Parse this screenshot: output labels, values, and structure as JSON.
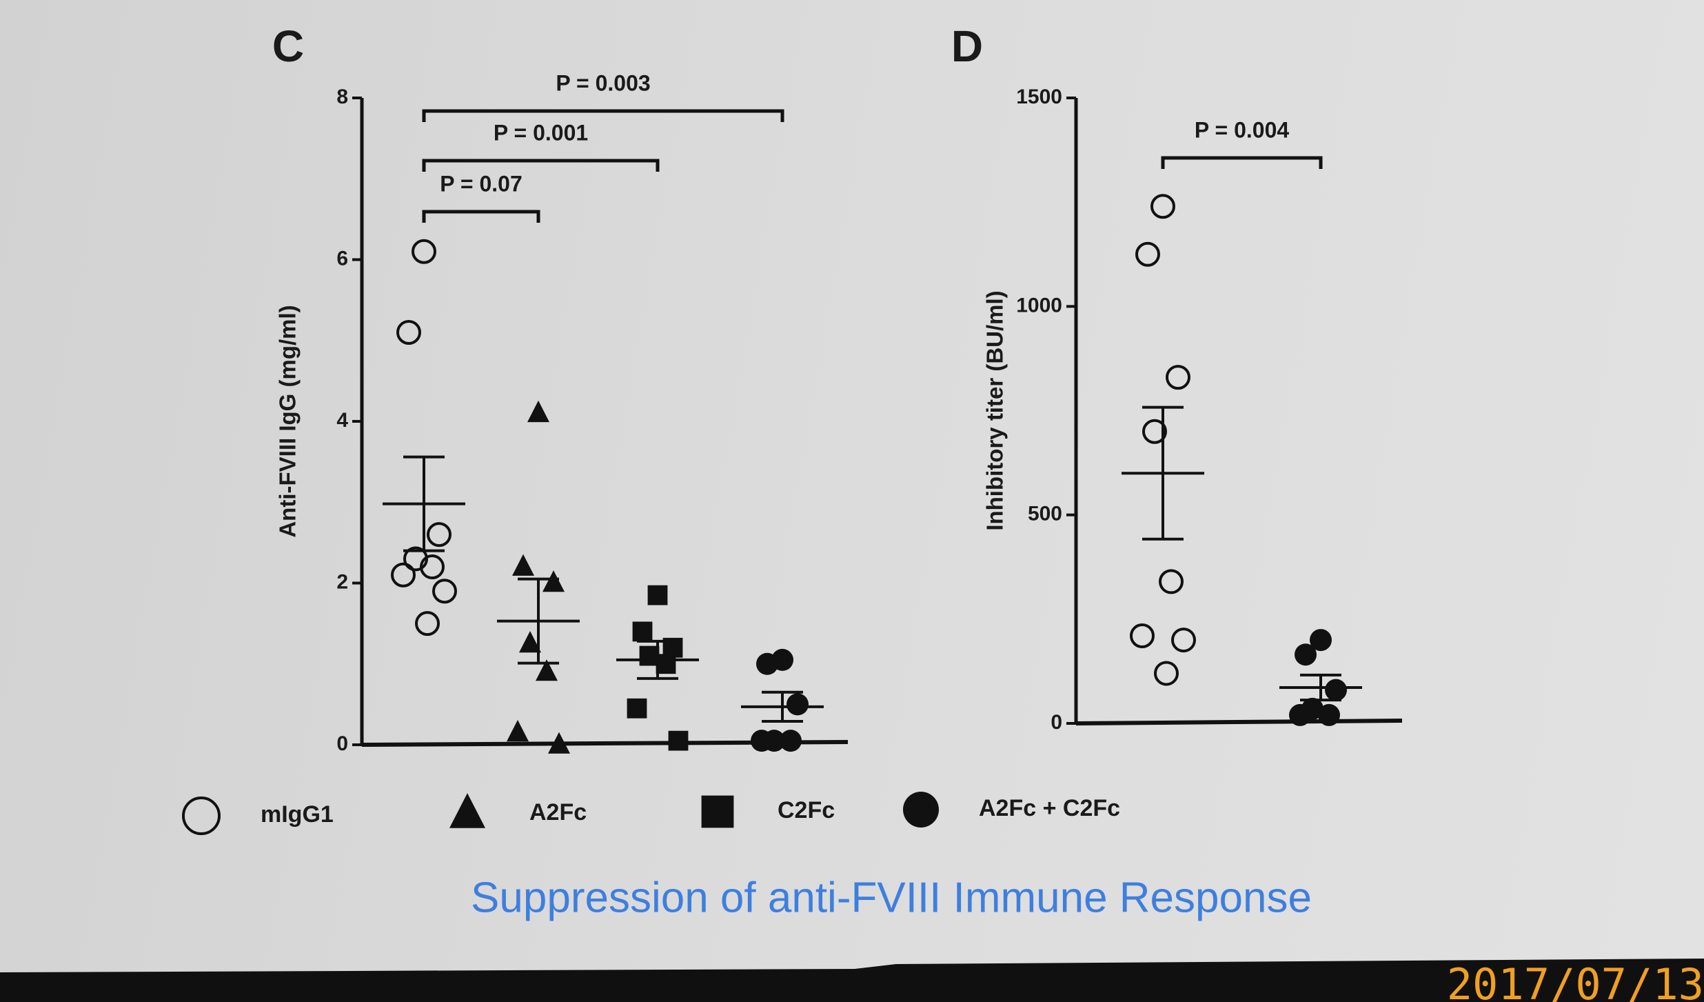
{
  "chart_data": [
    {
      "type": "dot",
      "panel": "C",
      "ylabel": "Anti-FVIII IgG (mg/ml)",
      "ylim": [
        0,
        8
      ],
      "yticks": [
        0,
        2,
        4,
        6,
        8
      ],
      "series": [
        {
          "name": "mIgG1",
          "marker": "circle-open",
          "color": "#111111",
          "values": [
            6.1,
            5.1,
            2.6,
            2.3,
            2.2,
            2.1,
            1.9,
            1.5
          ],
          "mean": 2.98,
          "error": 0.58
        },
        {
          "name": "A2Fc",
          "marker": "triangle",
          "color": "#111111",
          "values": [
            4.1,
            2.2,
            2.0,
            1.25,
            0.9,
            0.15,
            0.0
          ],
          "mean": 1.53,
          "error": 0.52
        },
        {
          "name": "C2Fc",
          "marker": "square",
          "color": "#111111",
          "values": [
            1.85,
            1.4,
            1.2,
            1.1,
            1.0,
            0.45,
            0.05
          ],
          "mean": 1.05,
          "error": 0.23
        },
        {
          "name": "A2Fc + C2Fc",
          "marker": "circle",
          "color": "#111111",
          "values": [
            1.05,
            1.0,
            0.5,
            0.05,
            0.05,
            0.05
          ],
          "mean": 0.47,
          "error": 0.18
        }
      ],
      "annotations": [
        {
          "text": "P = 0.07",
          "groups": [
            "mIgG1",
            "A2Fc"
          ]
        },
        {
          "text": "P = 0.001",
          "groups": [
            "mIgG1",
            "C2Fc"
          ]
        },
        {
          "text": "P = 0.003",
          "groups": [
            "mIgG1",
            "A2Fc + C2Fc"
          ]
        }
      ]
    },
    {
      "type": "dot",
      "panel": "D",
      "ylabel": "Inhibitory titer (BU/ml)",
      "ylim": [
        0,
        1500
      ],
      "yticks": [
        0,
        500,
        1000,
        1500
      ],
      "series": [
        {
          "name": "mIgG1",
          "values": [
            1240,
            1125,
            830,
            700,
            340,
            210,
            200,
            120
          ],
          "mean": 600,
          "error": 158
        },
        {
          "name": "A2Fc + C2Fc",
          "values": [
            200,
            165,
            80,
            35,
            20,
            20
          ],
          "mean": 86,
          "error": 30
        }
      ],
      "annotations": [
        {
          "text": "P = 0.004",
          "groups": [
            "mIgG1",
            "A2Fc + C2Fc"
          ]
        }
      ]
    }
  ],
  "title": "Suppression of anti-FVIII Immune Response",
  "timestamp": "2017/07/13"
}
